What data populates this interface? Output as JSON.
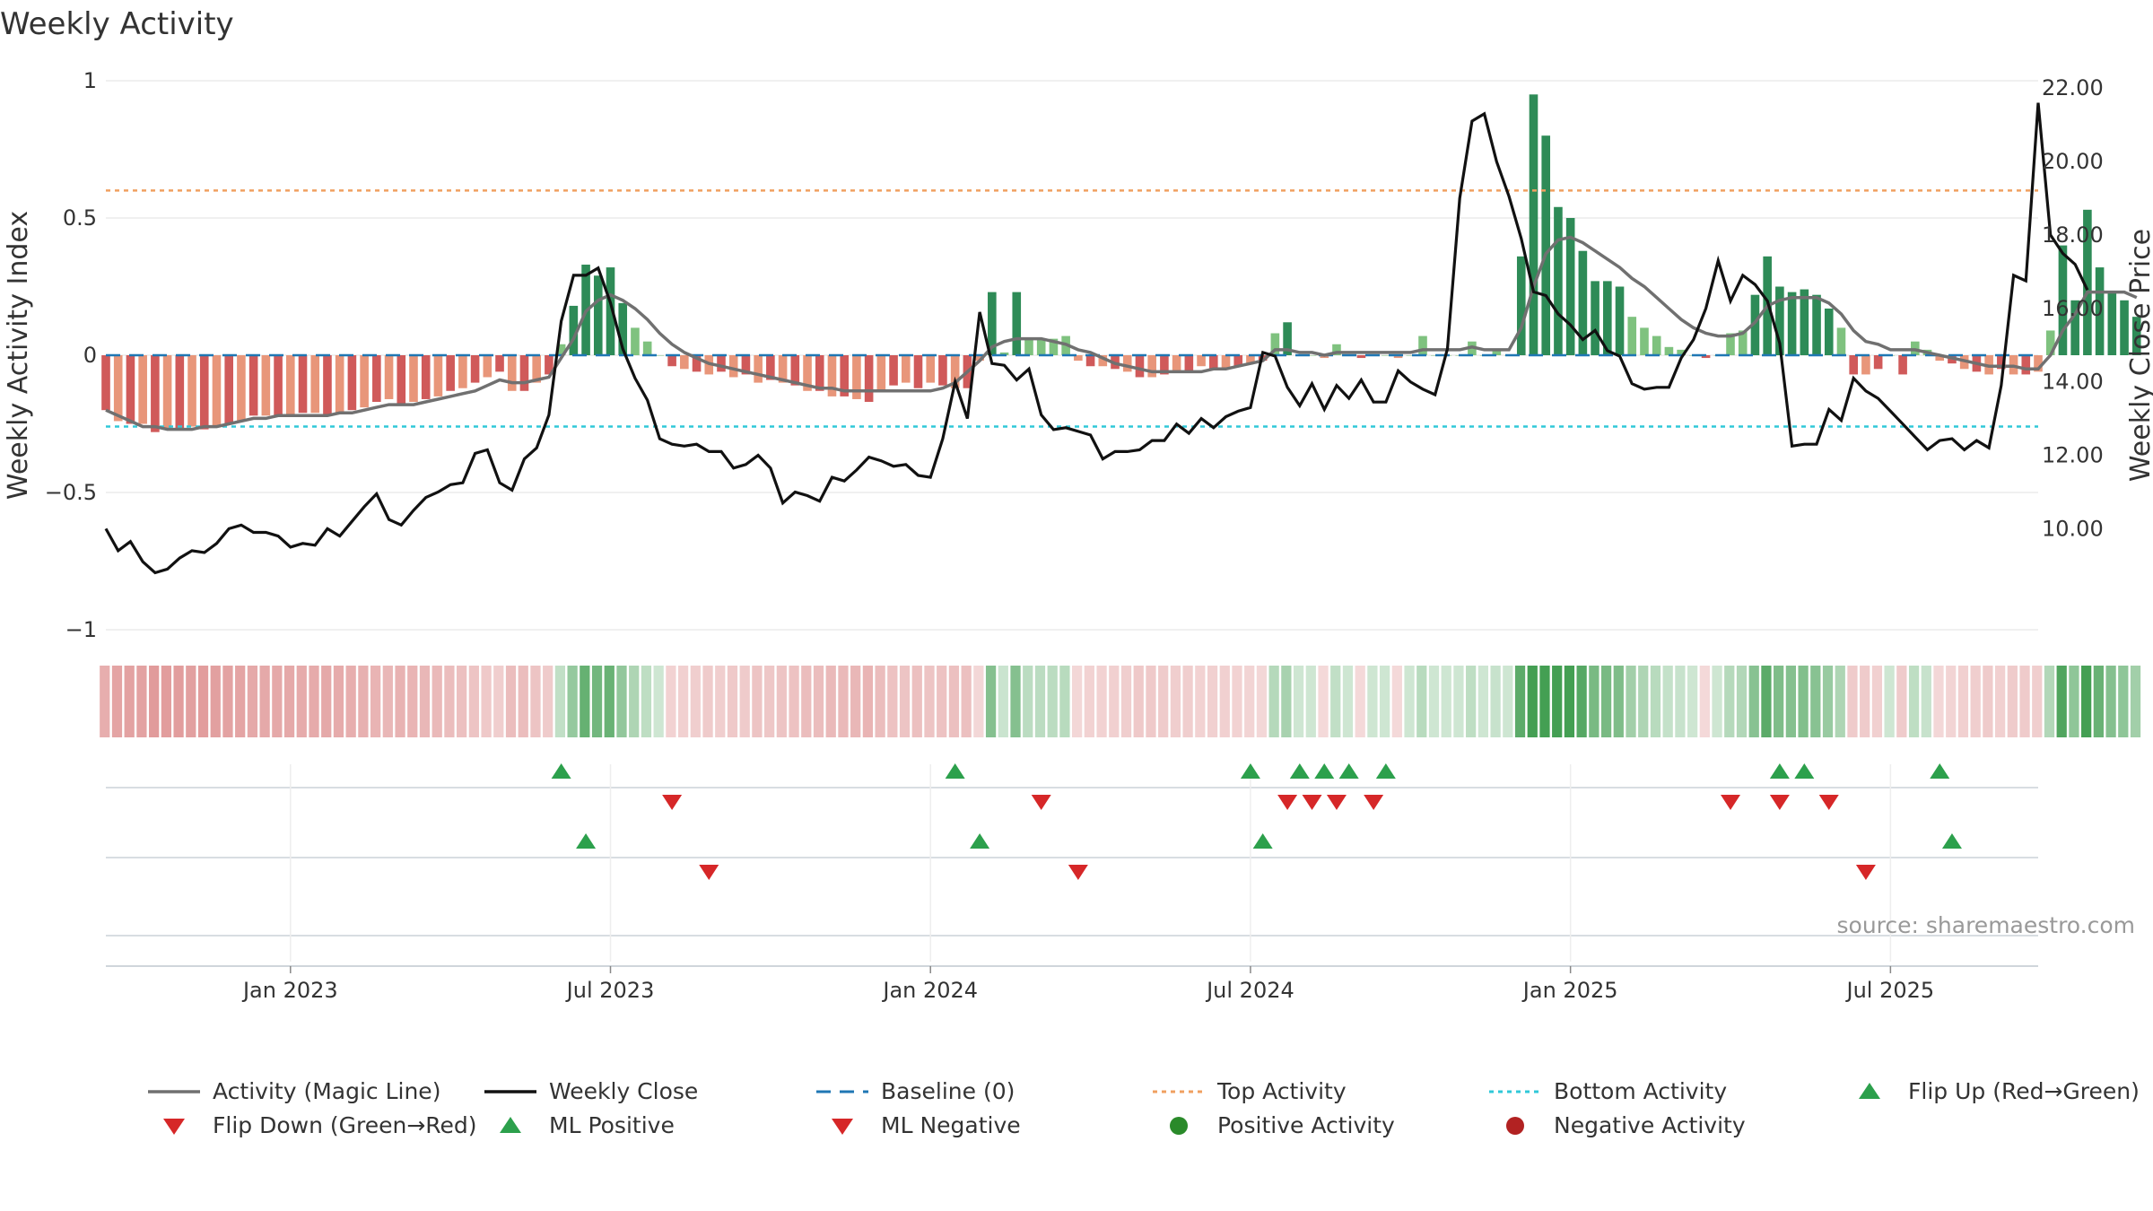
{
  "chart_data": {
    "type": "bar+line",
    "title": "Weekly Activity",
    "ylabel_left": "Weekly Activity Index",
    "ylabel_right": "Weekly Close Price",
    "source": "source: sharemaestro.com",
    "ylim_left": [
      -1,
      1
    ],
    "ylim_right": [
      7.2,
      22.2
    ],
    "yticks_left": [
      {
        "v": 1,
        "label": "1"
      },
      {
        "v": 0.5,
        "label": "0.5"
      },
      {
        "v": 0,
        "label": "0"
      },
      {
        "v": -0.5,
        "label": "−0.5"
      },
      {
        "v": -1,
        "label": "−1"
      }
    ],
    "yticks_right": [
      {
        "v": 22,
        "label": "22.00"
      },
      {
        "v": 20,
        "label": "20.00"
      },
      {
        "v": 18,
        "label": "18.00"
      },
      {
        "v": 16,
        "label": "16.00"
      },
      {
        "v": 14,
        "label": "14.00"
      },
      {
        "v": 12,
        "label": "12.00"
      },
      {
        "v": 10,
        "label": "10.00"
      }
    ],
    "x_range_weeks": [
      0,
      157
    ],
    "xticks": [
      {
        "week": 15,
        "label": "Jan 2023"
      },
      {
        "week": 41,
        "label": "Jul 2023"
      },
      {
        "week": 67,
        "label": "Jan 2024"
      },
      {
        "week": 93,
        "label": "Jul 2024"
      },
      {
        "week": 119,
        "label": "Jan 2025"
      },
      {
        "week": 145,
        "label": "Jul 2025"
      }
    ],
    "activity_index": [
      -0.2,
      -0.24,
      -0.25,
      -0.25,
      -0.28,
      -0.27,
      -0.27,
      -0.26,
      -0.27,
      -0.26,
      -0.25,
      -0.24,
      -0.22,
      -0.22,
      -0.22,
      -0.22,
      -0.21,
      -0.21,
      -0.22,
      -0.21,
      -0.2,
      -0.19,
      -0.17,
      -0.16,
      -0.18,
      -0.17,
      -0.16,
      -0.15,
      -0.13,
      -0.12,
      -0.1,
      -0.08,
      -0.06,
      -0.13,
      -0.13,
      -0.1,
      -0.07,
      0.04,
      0.18,
      0.33,
      0.29,
      0.32,
      0.19,
      0.1,
      0.05,
      0.0,
      -0.04,
      -0.05,
      -0.06,
      -0.07,
      -0.06,
      -0.08,
      -0.07,
      -0.1,
      -0.09,
      -0.1,
      -0.11,
      -0.13,
      -0.13,
      -0.15,
      -0.15,
      -0.16,
      -0.17,
      -0.13,
      -0.11,
      -0.1,
      -0.12,
      -0.1,
      -0.11,
      -0.12,
      -0.12,
      -0.02,
      0.23,
      0.01,
      0.23,
      0.06,
      0.06,
      0.06,
      0.07,
      -0.02,
      -0.04,
      -0.04,
      -0.05,
      -0.06,
      -0.08,
      -0.08,
      -0.07,
      -0.06,
      -0.06,
      -0.04,
      -0.05,
      -0.05,
      -0.04,
      -0.03,
      -0.02,
      0.08,
      0.12,
      0.0,
      0.0,
      -0.01,
      0.04,
      0.0,
      -0.01,
      0.0,
      0.0,
      -0.01,
      0.0,
      0.07,
      0.0,
      0.0,
      0.0,
      0.05,
      0.0,
      0.02,
      0.0,
      0.36,
      0.95,
      0.8,
      0.54,
      0.5,
      0.38,
      0.27,
      0.27,
      0.25,
      0.14,
      0.1,
      0.07,
      0.03,
      0.02,
      0.0,
      -0.01,
      0.0,
      0.08,
      0.09,
      0.22,
      0.36,
      0.25,
      0.23,
      0.24,
      0.22,
      0.17,
      0.1,
      -0.07,
      -0.07,
      -0.05,
      0.0,
      -0.07,
      0.05,
      0.02,
      -0.02,
      -0.03,
      -0.05,
      -0.06,
      -0.07,
      -0.05,
      -0.07,
      -0.07,
      -0.06,
      0.09,
      0.4,
      0.2,
      0.53,
      0.32,
      0.23,
      0.2,
      0.14
    ],
    "weekly_close": [
      10.0,
      9.4,
      9.65,
      9.1,
      8.8,
      8.9,
      9.2,
      9.4,
      9.35,
      9.6,
      10.0,
      10.1,
      9.9,
      9.9,
      9.8,
      9.5,
      9.6,
      9.55,
      10.0,
      9.8,
      10.2,
      10.6,
      10.95,
      10.25,
      10.1,
      10.5,
      10.85,
      11.0,
      11.2,
      11.25,
      12.05,
      12.15,
      11.25,
      11.05,
      11.9,
      12.2,
      13.1,
      15.65,
      16.9,
      16.9,
      17.1,
      16.15,
      14.9,
      14.1,
      13.5,
      12.45,
      12.3,
      12.25,
      12.3,
      12.1,
      12.1,
      11.65,
      11.75,
      12.0,
      11.65,
      10.7,
      11.0,
      10.9,
      10.75,
      11.4,
      11.3,
      11.6,
      11.95,
      11.85,
      11.7,
      11.75,
      11.45,
      11.4,
      12.45,
      14.0,
      13.0,
      15.9,
      14.5,
      14.45,
      14.05,
      14.35,
      13.1,
      12.7,
      12.75,
      12.65,
      12.55,
      11.9,
      12.1,
      12.1,
      12.15,
      12.4,
      12.4,
      12.85,
      12.6,
      13.0,
      12.75,
      13.05,
      13.2,
      13.3,
      14.8,
      14.7,
      13.85,
      13.35,
      13.95,
      13.25,
      13.9,
      13.55,
      14.05,
      13.45,
      13.45,
      14.3,
      14.0,
      13.8,
      13.65,
      14.9,
      19.0,
      21.1,
      21.3,
      20.0,
      19.05,
      17.9,
      16.45,
      16.35,
      15.85,
      15.55,
      15.15,
      15.4,
      14.85,
      14.7,
      13.95,
      13.8,
      13.85,
      13.85,
      14.65,
      15.15,
      16.0,
      17.3,
      16.2,
      16.9,
      16.65,
      16.2,
      15.05,
      12.25,
      12.3,
      12.3,
      13.25,
      12.95,
      14.1,
      13.75,
      13.55,
      13.2,
      12.85,
      12.5,
      12.15,
      12.4,
      12.45,
      12.15,
      12.4,
      12.2,
      13.9,
      16.9,
      16.75,
      21.6,
      18.0,
      17.5,
      17.2,
      16.5
    ],
    "magic_line": [
      -0.2,
      -0.22,
      -0.24,
      -0.26,
      -0.26,
      -0.27,
      -0.27,
      -0.27,
      -0.26,
      -0.26,
      -0.25,
      -0.24,
      -0.23,
      -0.23,
      -0.22,
      -0.22,
      -0.22,
      -0.22,
      -0.22,
      -0.21,
      -0.21,
      -0.2,
      -0.19,
      -0.18,
      -0.18,
      -0.18,
      -0.17,
      -0.16,
      -0.15,
      -0.14,
      -0.13,
      -0.11,
      -0.09,
      -0.1,
      -0.1,
      -0.09,
      -0.08,
      -0.01,
      0.06,
      0.16,
      0.2,
      0.22,
      0.2,
      0.17,
      0.13,
      0.08,
      0.04,
      0.01,
      -0.01,
      -0.03,
      -0.04,
      -0.05,
      -0.06,
      -0.07,
      -0.08,
      -0.09,
      -0.1,
      -0.11,
      -0.12,
      -0.12,
      -0.13,
      -0.13,
      -0.13,
      -0.13,
      -0.13,
      -0.13,
      -0.13,
      -0.13,
      -0.12,
      -0.1,
      -0.06,
      -0.02,
      0.03,
      0.05,
      0.06,
      0.06,
      0.06,
      0.05,
      0.04,
      0.02,
      0.01,
      -0.01,
      -0.03,
      -0.04,
      -0.05,
      -0.06,
      -0.06,
      -0.06,
      -0.06,
      -0.06,
      -0.05,
      -0.05,
      -0.04,
      -0.03,
      -0.02,
      0.02,
      0.02,
      0.01,
      0.01,
      0.0,
      0.01,
      0.01,
      0.01,
      0.01,
      0.01,
      0.01,
      0.01,
      0.02,
      0.02,
      0.02,
      0.02,
      0.03,
      0.02,
      0.02,
      0.02,
      0.1,
      0.25,
      0.37,
      0.42,
      0.43,
      0.41,
      0.38,
      0.35,
      0.32,
      0.28,
      0.25,
      0.21,
      0.17,
      0.13,
      0.1,
      0.08,
      0.07,
      0.07,
      0.08,
      0.12,
      0.18,
      0.2,
      0.21,
      0.21,
      0.21,
      0.19,
      0.15,
      0.09,
      0.05,
      0.04,
      0.02,
      0.02,
      0.02,
      0.01,
      0.0,
      -0.01,
      -0.02,
      -0.03,
      -0.04,
      -0.04,
      -0.04,
      -0.05,
      -0.05,
      0.0,
      0.09,
      0.15,
      0.23,
      0.23,
      0.23,
      0.23,
      0.21
    ],
    "baseline": 0,
    "top_activity": 0.6,
    "bottom_activity": -0.26,
    "signals": {
      "flip_up_weeks": [
        37,
        69,
        93,
        97,
        99,
        101,
        104,
        136,
        138,
        149
      ],
      "flip_down_weeks": [
        46,
        76,
        96,
        98,
        100,
        103,
        132,
        136,
        140
      ],
      "ml_positive_weeks": [
        39,
        71,
        94,
        150
      ],
      "ml_negative_weeks": [
        49,
        79,
        143
      ]
    },
    "legend": [
      {
        "label": "Activity (Magic Line)",
        "kind": "line",
        "color": "#707070"
      },
      {
        "label": "Weekly Close",
        "kind": "line",
        "color": "#111111"
      },
      {
        "label": "Baseline (0)",
        "kind": "dash",
        "color": "#1f77b4"
      },
      {
        "label": "Top Activity",
        "kind": "dot",
        "color": "#f0a060"
      },
      {
        "label": "Bottom Activity",
        "kind": "dot",
        "color": "#30c8d8"
      },
      {
        "label": "Flip Up (Red→Green)",
        "kind": "tri-up",
        "color": "#2ca04c"
      },
      {
        "label": "Flip Down (Green→Red)",
        "kind": "tri-down",
        "color": "#d62728"
      },
      {
        "label": "ML Positive",
        "kind": "tri-up",
        "color": "#2ca04c"
      },
      {
        "label": "ML Negative",
        "kind": "tri-down",
        "color": "#d62728"
      },
      {
        "label": "Positive Activity",
        "kind": "circle",
        "color": "#2a8a2a"
      },
      {
        "label": "Negative Activity",
        "kind": "circle",
        "color": "#b22222"
      }
    ],
    "colors": {
      "pos_strong": "#2e8b57",
      "pos_light": "#7fc27f",
      "neg_strong": "#d05a5a",
      "neg_light": "#e8967a",
      "heat_pos": "#3a9a4a",
      "heat_neg": "#d47070"
    }
  }
}
